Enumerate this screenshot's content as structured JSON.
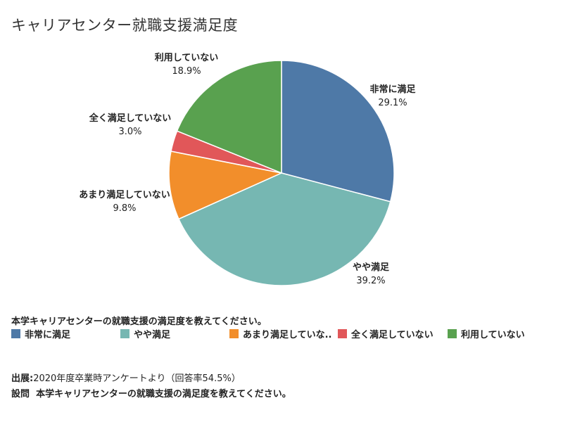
{
  "title": "キャリアセンター就職支援満足度",
  "chart_data": {
    "type": "pie",
    "title": "キャリアセンター就職支援満足度",
    "slices": [
      {
        "label": "非常に満足",
        "value": 29.1,
        "pct_label": "29.1%",
        "color": "#4e79a7"
      },
      {
        "label": "やや満足",
        "value": 39.2,
        "pct_label": "39.2%",
        "color": "#76b7b2"
      },
      {
        "label": "あまり満足していない",
        "value": 9.8,
        "pct_label": "9.8%",
        "color": "#f28e2b"
      },
      {
        "label": "全く満足していない",
        "value": 3.0,
        "pct_label": "3.0%",
        "color": "#e15759"
      },
      {
        "label": "利用していない",
        "value": 18.9,
        "pct_label": "18.9%",
        "color": "#59a14f"
      }
    ],
    "legend_title": "本学キャリアセンターの就職支援の満足度を教えてください。",
    "legend_labels": [
      "非常に満足",
      "やや満足",
      "あまり満足していな..",
      "全く満足していない",
      "利用していない"
    ],
    "legend_position": "bottom"
  },
  "footer": {
    "source_label": "出展",
    "source_value": "2020年度卒業時アンケートより（回答率54.5%）",
    "question_label": "設問",
    "question_value": "本学キャリアセンターの就職支援の満足度を教えてください。"
  }
}
